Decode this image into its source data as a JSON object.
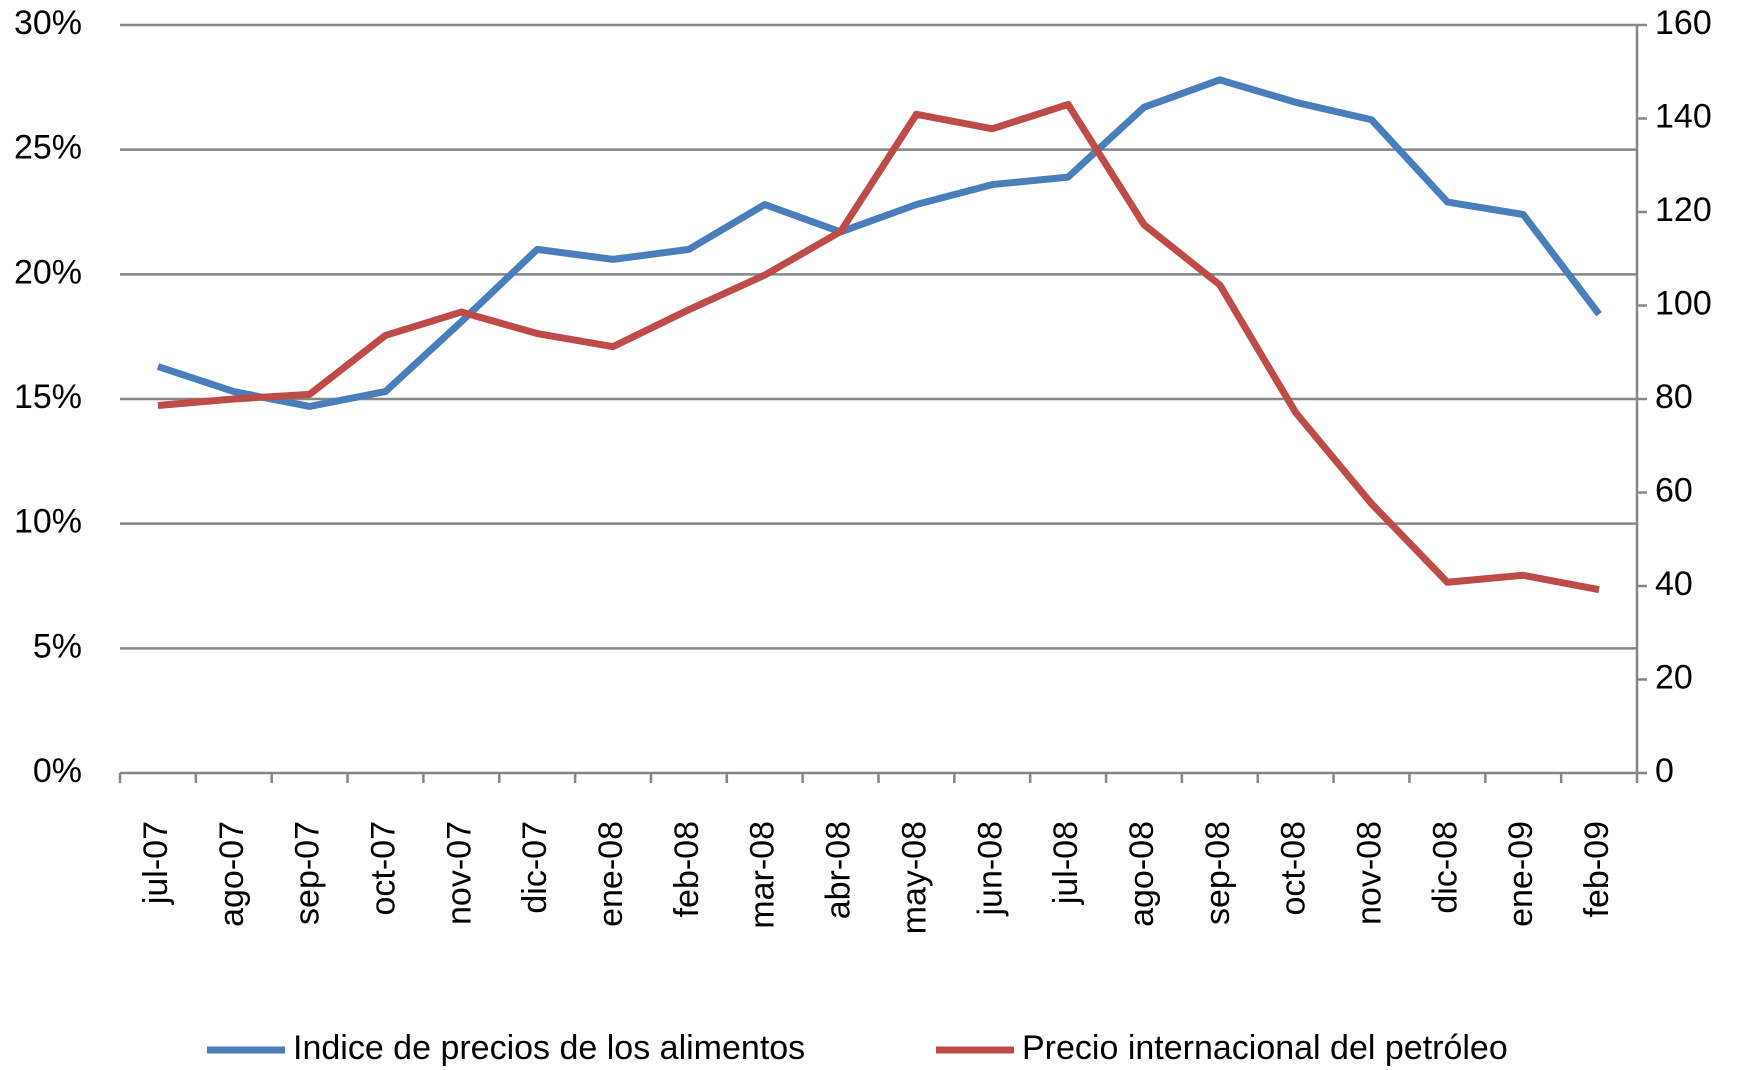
{
  "chart_data": {
    "type": "line",
    "categories": [
      "jul-07",
      "ago-07",
      "sep-07",
      "oct-07",
      "nov-07",
      "dic-07",
      "ene-08",
      "feb-08",
      "mar-08",
      "abr-08",
      "may-08",
      "jun-08",
      "jul-08",
      "ago-08",
      "sep-08",
      "oct-08",
      "nov-08",
      "dic-08",
      "ene-09",
      "feb-09"
    ],
    "series": [
      {
        "name": "Indice de precios de los alimentos",
        "color": "#4a7ebb",
        "values": [
          16.3,
          15.3,
          14.7,
          15.3,
          18.1,
          21.0,
          20.6,
          21.0,
          22.8,
          21.7,
          22.8,
          23.6,
          23.9,
          26.7,
          27.8,
          26.9,
          26.2,
          22.9,
          22.4,
          18.4
        ]
      },
      {
        "name": "Precio internacional del petróleo",
        "color": "#be4b48",
        "axis": "y2",
        "values": [
          78.6,
          80,
          81,
          93.6,
          98.6,
          94,
          91.2,
          99.1,
          106.5,
          115.8,
          140.9,
          137.8,
          143,
          117.3,
          104.4,
          77.1,
          57.6,
          40.8,
          42.3,
          39.2
        ]
      }
    ],
    "ylim": [
      0,
      30
    ],
    "yticks": [
      {
        "value": 0,
        "label": "0%"
      },
      {
        "value": 5,
        "label": "5%"
      },
      {
        "value": 10,
        "label": "10%"
      },
      {
        "value": 15,
        "label": "15%"
      },
      {
        "value": 20,
        "label": "20%"
      },
      {
        "value": 25,
        "label": "25%"
      },
      {
        "value": 30,
        "label": "30%"
      }
    ],
    "y2lim": [
      0,
      160
    ],
    "y2ticks": [
      0,
      20,
      40,
      60,
      80,
      100,
      120,
      140,
      160
    ],
    "grid": true,
    "legend": "bottom"
  }
}
